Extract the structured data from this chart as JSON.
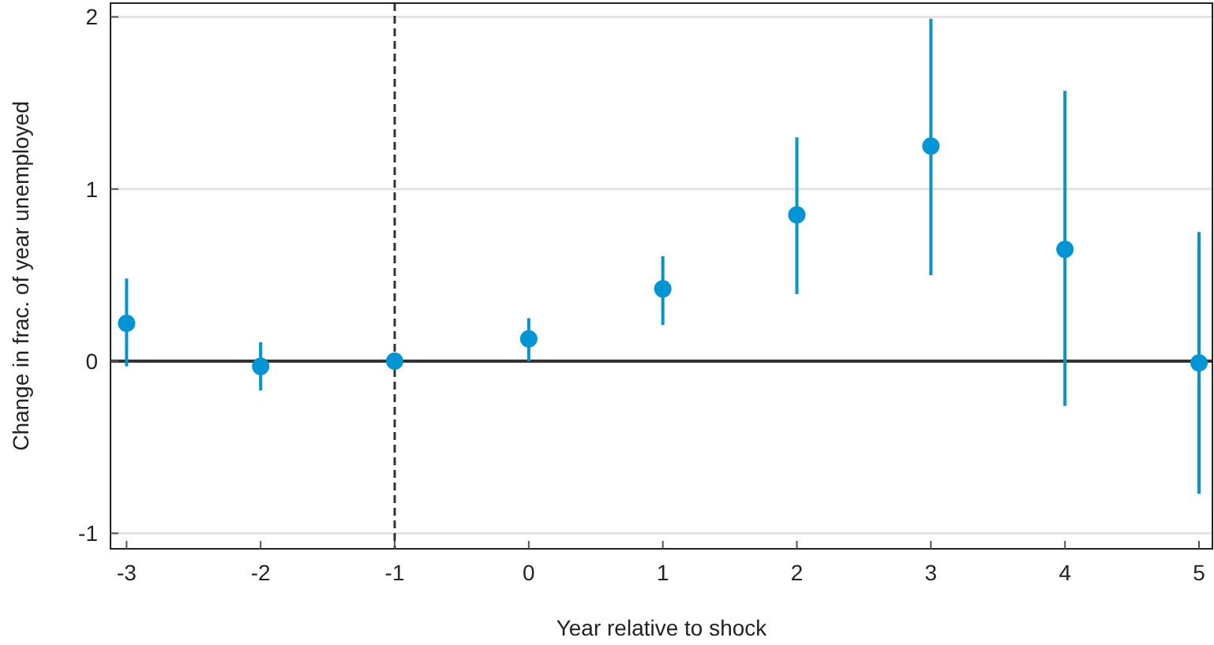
{
  "chart_data": {
    "type": "scatter",
    "xlabel": "Year relative to shock",
    "ylabel": "Change in frac. of year unemployed",
    "x": [
      -3,
      -2,
      -1,
      0,
      1,
      2,
      3,
      4,
      5
    ],
    "series": [
      {
        "color": "#0096d6",
        "values": [
          0.22,
          -0.03,
          0,
          0.13,
          0.42,
          0.85,
          1.25,
          0.65,
          -0.01
        ],
        "errors": [
          [
            -0.03,
            0.48
          ],
          [
            -0.17,
            0.11
          ],
          null,
          [
            0,
            0.25
          ],
          [
            0.21,
            0.61
          ],
          [
            0.39,
            1.3
          ],
          [
            0.5,
            1.99
          ],
          [
            -0.26,
            1.57
          ],
          [
            -0.77,
            0.75
          ]
        ]
      }
    ],
    "xlim": [
      -3.12,
      5.1
    ],
    "xticks": [
      -3,
      -2,
      -1,
      0,
      1,
      2,
      3,
      4,
      5
    ],
    "ylim": [
      -1.09,
      2.08
    ],
    "yticks": [
      -1,
      0,
      1,
      2
    ],
    "grid": "y",
    "marker": "circle",
    "ref_lines": [
      {
        "axis": "y",
        "value": 0,
        "color": "#333333",
        "line_style": "solid"
      },
      {
        "axis": "x",
        "value": -1,
        "color": "#333333",
        "line_style": "dashed"
      }
    ]
  }
}
